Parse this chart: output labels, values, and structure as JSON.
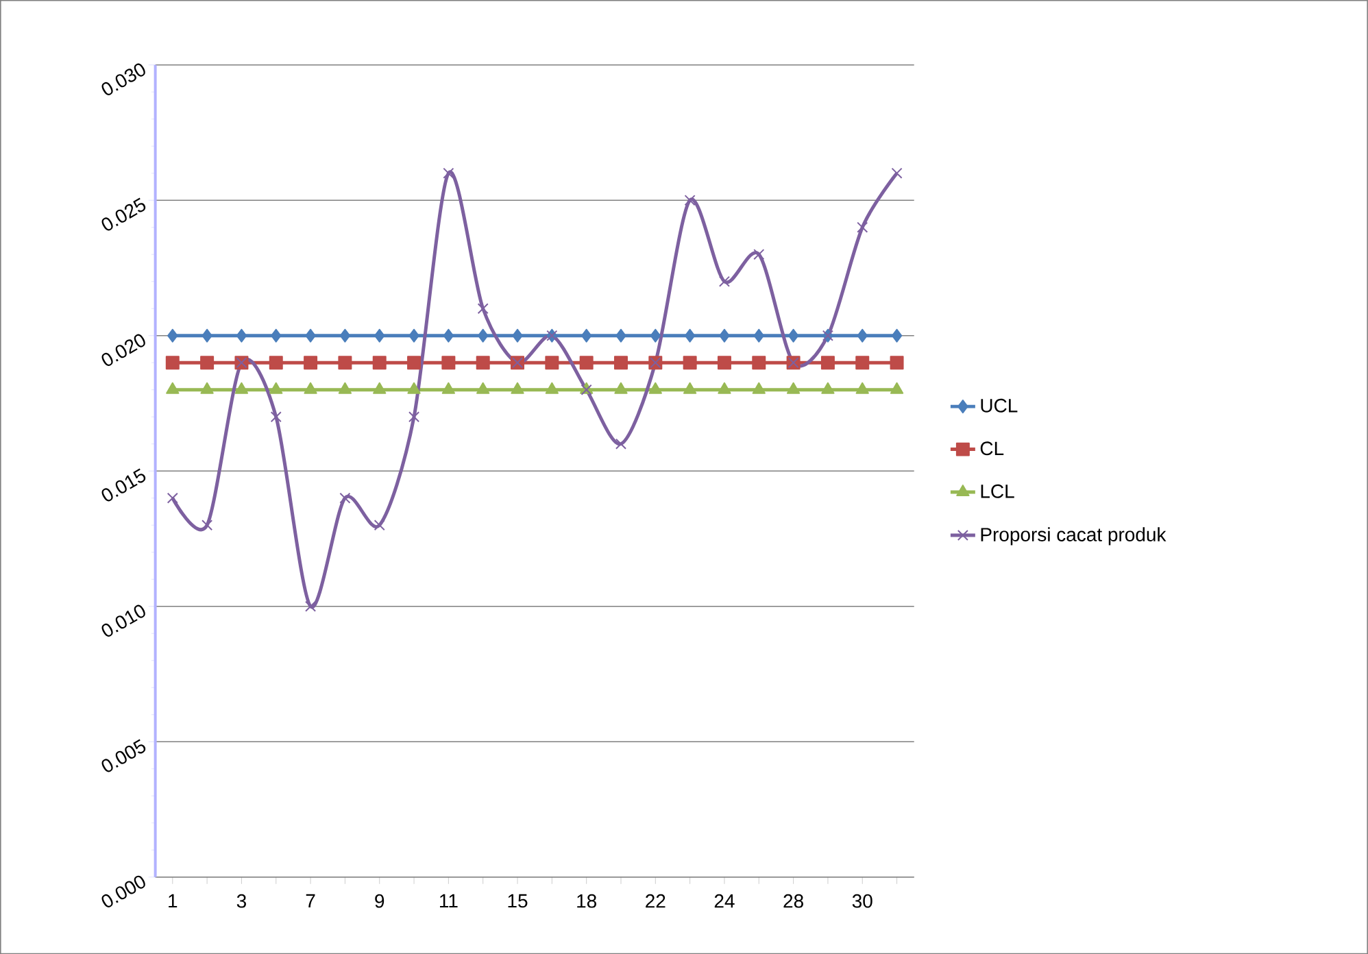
{
  "chart_data": {
    "type": "line",
    "categories": [
      "1",
      null,
      "3",
      null,
      "7",
      null,
      "9",
      null,
      "11",
      null,
      "15",
      null,
      "18",
      null,
      "22",
      null,
      "24",
      null,
      "28",
      null,
      "30",
      null
    ],
    "series": [
      {
        "name": "UCL",
        "color": "#4a7ebb",
        "marker": "diamond",
        "values": [
          0.02,
          0.02,
          0.02,
          0.02,
          0.02,
          0.02,
          0.02,
          0.02,
          0.02,
          0.02,
          0.02,
          0.02,
          0.02,
          0.02,
          0.02,
          0.02,
          0.02,
          0.02,
          0.02,
          0.02,
          0.02,
          0.02
        ]
      },
      {
        "name": "CL",
        "color": "#be4b48",
        "marker": "square",
        "values": [
          0.019,
          0.019,
          0.019,
          0.019,
          0.019,
          0.019,
          0.019,
          0.019,
          0.019,
          0.019,
          0.019,
          0.019,
          0.019,
          0.019,
          0.019,
          0.019,
          0.019,
          0.019,
          0.019,
          0.019,
          0.019,
          0.019
        ]
      },
      {
        "name": "LCL",
        "color": "#98b954",
        "marker": "triangle",
        "values": [
          0.018,
          0.018,
          0.018,
          0.018,
          0.018,
          0.018,
          0.018,
          0.018,
          0.018,
          0.018,
          0.018,
          0.018,
          0.018,
          0.018,
          0.018,
          0.018,
          0.018,
          0.018,
          0.018,
          0.018,
          0.018,
          0.018
        ]
      },
      {
        "name": "Proporsi cacat produk",
        "color": "#7d60a0",
        "marker": "cross",
        "values": [
          0.014,
          0.013,
          0.019,
          0.017,
          0.01,
          0.014,
          0.013,
          0.017,
          0.026,
          0.021,
          0.019,
          0.02,
          0.018,
          0.016,
          0.019,
          0.025,
          0.022,
          0.023,
          0.019,
          0.02,
          0.024,
          0.026
        ]
      }
    ],
    "ylim": [
      0,
      0.03
    ],
    "yticks": [
      {
        "value": 0,
        "label": "0.000"
      },
      {
        "value": 0.005,
        "label": "0.005"
      },
      {
        "value": 0.01,
        "label": "0.010"
      },
      {
        "value": 0.015,
        "label": "0.015"
      },
      {
        "value": 0.02,
        "label": "0.020"
      },
      {
        "value": 0.025,
        "label": "0.025"
      },
      {
        "value": 0.03,
        "label": "0.030"
      }
    ],
    "grid": "y",
    "legend": "right",
    "line_style": "solid"
  }
}
